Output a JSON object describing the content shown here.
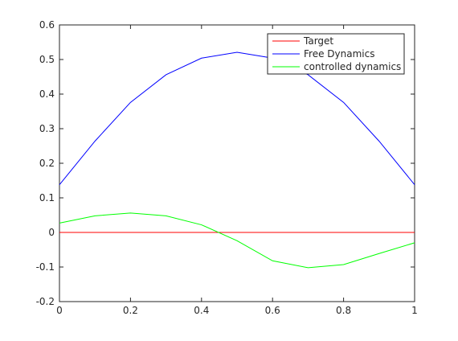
{
  "chart_data": {
    "type": "line",
    "title": "",
    "xlabel": "",
    "ylabel": "",
    "xlim": [
      0,
      1
    ],
    "ylim": [
      -0.2,
      0.6
    ],
    "grid": false,
    "legend_position": "top-right",
    "x": [
      0,
      0.1,
      0.2,
      0.3,
      0.4,
      0.5,
      0.6,
      0.7,
      0.8,
      0.9,
      1.0
    ],
    "x_ticks": [
      "0",
      "0.2",
      "0.4",
      "0.6",
      "0.8",
      "1"
    ],
    "y_ticks": [
      "-0.2",
      "-0.1",
      "0",
      "0.1",
      "0.2",
      "0.3",
      "0.4",
      "0.5",
      "0.6"
    ],
    "series": [
      {
        "name": "Target",
        "color": "#ff0000",
        "values": [
          0,
          0,
          0,
          0,
          0,
          0,
          0,
          0,
          0,
          0,
          0
        ]
      },
      {
        "name": "Free Dynamics",
        "color": "#0000ff",
        "values": [
          0.138,
          0.264,
          0.376,
          0.456,
          0.504,
          0.521,
          0.504,
          0.456,
          0.376,
          0.264,
          0.138
        ]
      },
      {
        "name": "controlled dynamics",
        "color": "#00ff00",
        "values": [
          0.027,
          0.048,
          0.056,
          0.048,
          0.022,
          -0.024,
          -0.082,
          -0.102,
          -0.093,
          -0.061,
          -0.03
        ]
      }
    ]
  }
}
